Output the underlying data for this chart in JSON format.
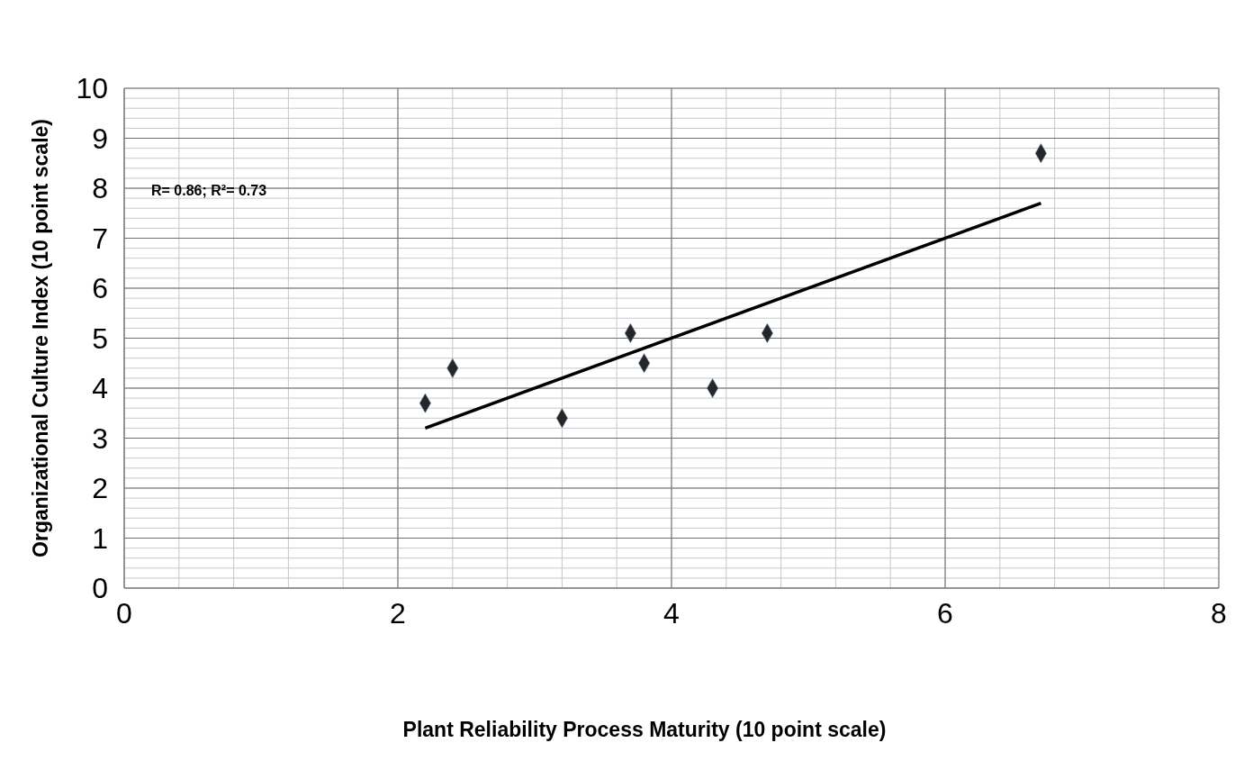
{
  "chart_data": {
    "type": "scatter",
    "xlabel": "Plant Reliability Process Maturity (10 point scale)",
    "ylabel": "Organizational Culture Index (10 point scale)",
    "annotations": [
      "R= 0.86; R²= 0.73"
    ],
    "series": [
      {
        "color": "#262626",
        "x": [
          2.2,
          2.4,
          3.2,
          3.7,
          3.8,
          4.3,
          4.7,
          6.7
        ],
        "values": [
          3.7,
          4.4,
          3.4,
          5.1,
          4.5,
          4.0,
          5.1,
          8.7
        ],
        "marker": "diamond"
      },
      {
        "type": "line",
        "color": "#000000",
        "x": [
          2.2,
          6.7
        ],
        "values": [
          3.2,
          7.7
        ],
        "marker": "none",
        "line_style": "solid"
      }
    ],
    "xlim": [
      0,
      8
    ],
    "ylim": [
      0,
      10
    ],
    "xticks": [
      0,
      {
        "value": 0.4,
        "label": null
      },
      {
        "value": 0.8,
        "label": null
      },
      {
        "value": 1.2,
        "label": null
      },
      {
        "value": 1.6,
        "label": null
      },
      2,
      {
        "value": 2.4,
        "label": null
      },
      {
        "value": 2.8,
        "label": null
      },
      {
        "value": 3.2,
        "label": null
      },
      {
        "value": 3.6,
        "label": null
      },
      4,
      {
        "value": 4.4,
        "label": null
      },
      {
        "value": 4.8,
        "label": null
      },
      {
        "value": 5.2,
        "label": null
      },
      {
        "value": 5.6,
        "label": null
      },
      6,
      {
        "value": 6.4,
        "label": null
      },
      {
        "value": 6.8,
        "label": null
      },
      {
        "value": 7.2,
        "label": null
      },
      {
        "value": 7.6,
        "label": null
      },
      8
    ],
    "yticks": [
      0,
      {
        "value": 0.2,
        "label": null
      },
      {
        "value": 0.4,
        "label": null
      },
      {
        "value": 0.6,
        "label": null
      },
      {
        "value": 0.8,
        "label": null
      },
      1,
      {
        "value": 1.2,
        "label": null
      },
      {
        "value": 1.4,
        "label": null
      },
      {
        "value": 1.6,
        "label": null
      },
      {
        "value": 1.8,
        "label": null
      },
      2,
      {
        "value": 2.2,
        "label": null
      },
      {
        "value": 2.4,
        "label": null
      },
      {
        "value": 2.6,
        "label": null
      },
      {
        "value": 2.8,
        "label": null
      },
      3,
      {
        "value": 3.2,
        "label": null
      },
      {
        "value": 3.4,
        "label": null
      },
      {
        "value": 3.6,
        "label": null
      },
      {
        "value": 3.8,
        "label": null
      },
      4,
      {
        "value": 4.2,
        "label": null
      },
      {
        "value": 4.4,
        "label": null
      },
      {
        "value": 4.6,
        "label": null
      },
      {
        "value": 4.8,
        "label": null
      },
      5,
      {
        "value": 5.2,
        "label": null
      },
      {
        "value": 5.4,
        "label": null
      },
      {
        "value": 5.6,
        "label": null
      },
      {
        "value": 5.8,
        "label": null
      },
      6,
      {
        "value": 6.2,
        "label": null
      },
      {
        "value": 6.4,
        "label": null
      },
      {
        "value": 6.6,
        "label": null
      },
      {
        "value": 6.8,
        "label": null
      },
      7,
      {
        "value": 7.2,
        "label": null
      },
      {
        "value": 7.4,
        "label": null
      },
      {
        "value": 7.6,
        "label": null
      },
      {
        "value": 7.8,
        "label": null
      },
      8,
      {
        "value": 8.2,
        "label": null
      },
      {
        "value": 8.4,
        "label": null
      },
      {
        "value": 8.6,
        "label": null
      },
      {
        "value": 8.8,
        "label": null
      },
      9,
      {
        "value": 9.2,
        "label": null
      },
      {
        "value": 9.4,
        "label": null
      },
      {
        "value": 9.6,
        "label": null
      },
      {
        "value": 9.8,
        "label": null
      },
      10
    ],
    "grid": true,
    "legend": false
  }
}
